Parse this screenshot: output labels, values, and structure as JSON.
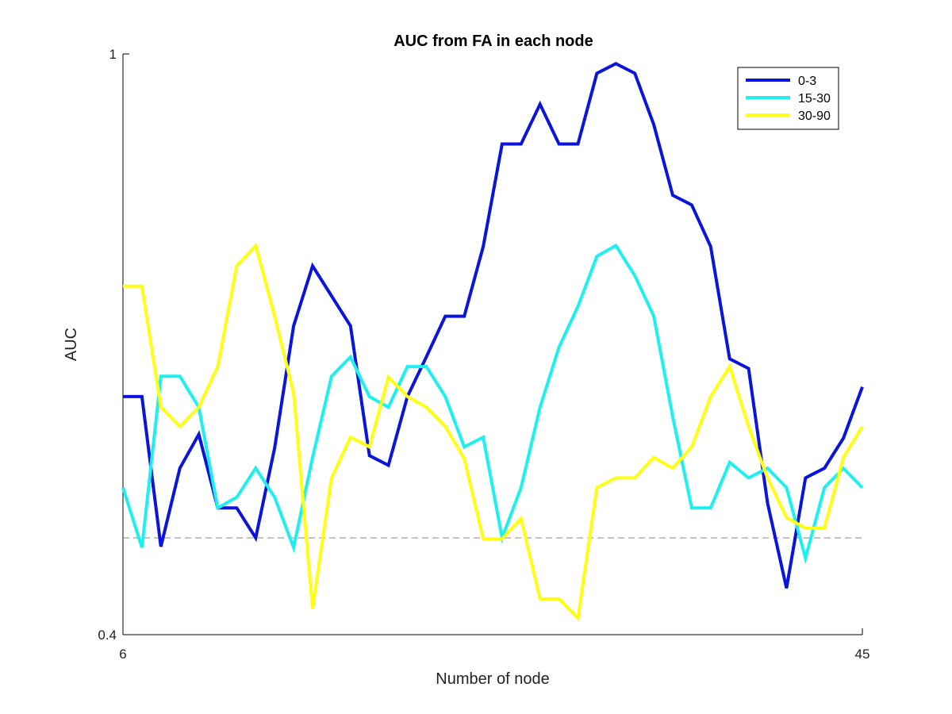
{
  "chart_data": {
    "type": "line",
    "title": "AUC from FA in each node",
    "xlabel": "Number of node",
    "ylabel": "AUC",
    "xlim": [
      6,
      45
    ],
    "ylim": [
      0.4,
      1
    ],
    "xticks": [
      6,
      45
    ],
    "xtick_labels": [
      "6",
      "45"
    ],
    "yticks": [
      0.4,
      1
    ],
    "ytick_labels": [
      "0.4",
      "1"
    ],
    "grid": false,
    "legend_position": "top-right",
    "reference_line": {
      "y": 0.5,
      "style": "dashed",
      "color": "#888888"
    },
    "x": [
      6,
      7,
      8,
      9,
      10,
      11,
      12,
      13,
      14,
      15,
      16,
      17,
      18,
      19,
      20,
      21,
      22,
      23,
      24,
      25,
      26,
      27,
      28,
      29,
      30,
      31,
      32,
      33,
      34,
      35,
      36,
      37,
      38,
      39,
      40,
      41,
      42,
      43,
      44,
      45
    ],
    "series": [
      {
        "name": "0-3",
        "color": "#0a14dc",
        "values": [
          0.646,
          0.646,
          0.491,
          0.572,
          0.607,
          0.531,
          0.531,
          0.5,
          0.593,
          0.719,
          0.781,
          0.75,
          0.719,
          0.585,
          0.575,
          0.646,
          0.687,
          0.729,
          0.729,
          0.801,
          0.907,
          0.907,
          0.948,
          0.907,
          0.907,
          0.98,
          0.99,
          0.98,
          0.927,
          0.854,
          0.844,
          0.801,
          0.685,
          0.675,
          0.536,
          0.448,
          0.562,
          0.572,
          0.603,
          0.656
        ]
      },
      {
        "name": "15-30",
        "color": "#1ef0f0",
        "values": [
          0.552,
          0.49,
          0.667,
          0.667,
          0.635,
          0.531,
          0.542,
          0.572,
          0.542,
          0.49,
          0.583,
          0.667,
          0.687,
          0.646,
          0.635,
          0.677,
          0.677,
          0.646,
          0.594,
          0.604,
          0.5,
          0.552,
          0.635,
          0.697,
          0.739,
          0.791,
          0.802,
          0.771,
          0.729,
          0.625,
          0.531,
          0.531,
          0.578,
          0.562,
          0.572,
          0.552,
          0.479,
          0.552,
          0.572,
          0.552
        ]
      },
      {
        "name": "30-90",
        "color": "#ffff14",
        "values": [
          0.76,
          0.76,
          0.635,
          0.615,
          0.635,
          0.677,
          0.781,
          0.802,
          0.729,
          0.65,
          0.427,
          0.562,
          0.604,
          0.594,
          0.666,
          0.646,
          0.635,
          0.615,
          0.582,
          0.499,
          0.499,
          0.52,
          0.437,
          0.437,
          0.417,
          0.552,
          0.562,
          0.562,
          0.583,
          0.572,
          0.594,
          0.646,
          0.677,
          0.615,
          0.562,
          0.521,
          0.51,
          0.51,
          0.583,
          0.615
        ]
      }
    ]
  }
}
